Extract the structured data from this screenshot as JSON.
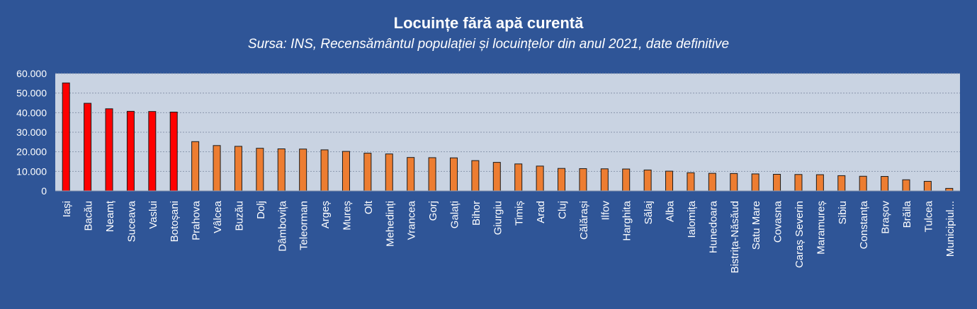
{
  "chart_data": {
    "type": "bar",
    "title": "Locuințe fără  apă curentă",
    "subtitle": "Sursa: INS, Recensământul populației și locuințelor din anul 2021, date definitive",
    "xlabel": "",
    "ylabel": "",
    "ylim": [
      0,
      60000
    ],
    "yticks": [
      "0",
      "10.000",
      "20.000",
      "30.000",
      "40.000",
      "50.000",
      "60.000"
    ],
    "grid": true,
    "legend": "none",
    "categories": [
      "Iași",
      "Bacău",
      "Neamț",
      "Suceava",
      "Vaslui",
      "Botoșani",
      "Prahova",
      "Vâlcea",
      "Buzău",
      "Dolj",
      "Dâmbovița",
      "Teleorman",
      "Argeș",
      "Mureș",
      "Olt",
      "Mehedinți",
      "Vrancea",
      "Gorj",
      "Galați",
      "Bihor",
      "Giurgiu",
      "Timiș",
      "Arad",
      "Cluj",
      "Călărași",
      "Ilfov",
      "Harghita",
      "Sălaj",
      "Alba",
      "Ialomița",
      "Hunedoara",
      "Bistrița-Năsăud",
      "Satu Mare",
      "Covasna",
      "Caraș Severin",
      "Maramureș",
      "Sibiu",
      "Constanța",
      "Brașov",
      "Brăila",
      "Tulcea",
      "Municipiul..."
    ],
    "values": [
      55200,
      44800,
      42000,
      40700,
      40600,
      40300,
      25200,
      23200,
      22800,
      21800,
      21500,
      21400,
      21000,
      20200,
      19300,
      18900,
      17100,
      17000,
      16900,
      15500,
      14600,
      13800,
      12700,
      11500,
      11400,
      11300,
      11200,
      10700,
      10100,
      9300,
      9000,
      8900,
      8700,
      8500,
      8400,
      8300,
      7800,
      7500,
      7400,
      5700,
      4900,
      1300
    ],
    "colors": {
      "highlight": "#ff0000",
      "bar": "#ed7d31",
      "bar_outline": "#1a1a1a",
      "plot_bg": "#c9d3e2",
      "frame_bg": "#2f5597",
      "text": "#ffffff",
      "gridline": "#8a97ad"
    },
    "highlight_count": 6
  }
}
